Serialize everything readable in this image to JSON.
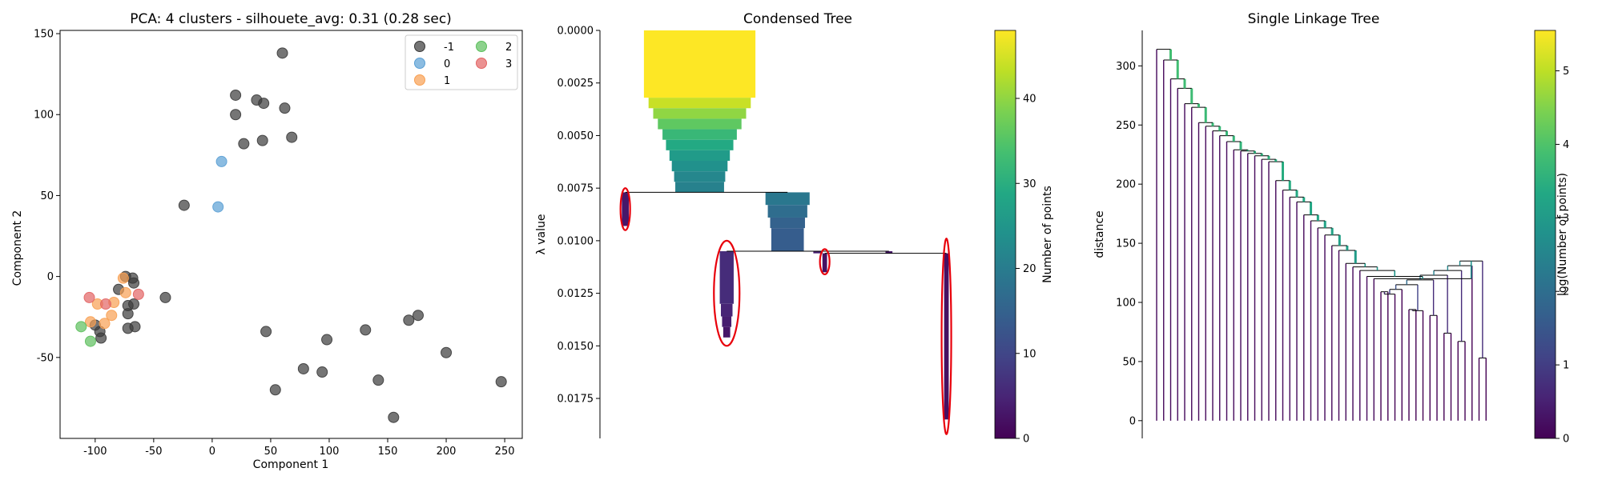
{
  "chart_data": [
    {
      "type": "scatter",
      "title": "PCA: 4 clusters - silhouete_avg: 0.31 (0.28 sec)",
      "xlabel": "Component 1",
      "ylabel": "Component 2",
      "xlim": [
        -130,
        265
      ],
      "ylim": [
        -100,
        152
      ],
      "xticks": [
        -100,
        -50,
        0,
        50,
        100,
        150,
        200,
        250
      ],
      "yticks": [
        -50,
        0,
        50,
        100,
        150
      ],
      "legend_position": "top-right",
      "series": [
        {
          "name": "-1",
          "color": "#3a3a3a",
          "points": [
            [
              60,
              138
            ],
            [
              20,
              112
            ],
            [
              38,
              109
            ],
            [
              44,
              107
            ],
            [
              62,
              104
            ],
            [
              20,
              100
            ],
            [
              68,
              86
            ],
            [
              43,
              84
            ],
            [
              27,
              82
            ],
            [
              -24,
              44
            ],
            [
              -80,
              -8
            ],
            [
              -74,
              0
            ],
            [
              -68,
              -1
            ],
            [
              -67,
              -4
            ],
            [
              -72,
              -18
            ],
            [
              -67,
              -17
            ],
            [
              -40,
              -13
            ],
            [
              -72,
              -23
            ],
            [
              -96,
              -34
            ],
            [
              -100,
              -30
            ],
            [
              -95,
              -38
            ],
            [
              -72,
              -32
            ],
            [
              -66,
              -31
            ],
            [
              46,
              -34
            ],
            [
              98,
              -39
            ],
            [
              131,
              -33
            ],
            [
              168,
              -27
            ],
            [
              176,
              -24
            ],
            [
              200,
              -47
            ],
            [
              78,
              -57
            ],
            [
              94,
              -59
            ],
            [
              142,
              -64
            ],
            [
              247,
              -65
            ],
            [
              54,
              -70
            ],
            [
              155,
              -87
            ]
          ]
        },
        {
          "name": "0",
          "color": "#5a9fd4",
          "points": [
            [
              8,
              71
            ],
            [
              5,
              43
            ]
          ]
        },
        {
          "name": "1",
          "color": "#f8a052",
          "points": [
            [
              -76,
              -1
            ],
            [
              -74,
              -10
            ],
            [
              -84,
              -16
            ],
            [
              -98,
              -17
            ],
            [
              -86,
              -24
            ],
            [
              -104,
              -28
            ],
            [
              -92,
              -29
            ]
          ]
        },
        {
          "name": "2",
          "color": "#5cbf5c",
          "points": [
            [
              -112,
              -31
            ],
            [
              -104,
              -40
            ]
          ]
        },
        {
          "name": "3",
          "color": "#e26464",
          "points": [
            [
              -105,
              -13
            ],
            [
              -63,
              -11
            ],
            [
              -91,
              -17
            ]
          ]
        }
      ]
    },
    {
      "type": "bar",
      "title": "Condensed Tree",
      "ylabel": "λ value",
      "yticks": [
        "0.0000",
        "0.0025",
        "0.0050",
        "0.0075",
        "0.0100",
        "0.0125",
        "0.0150",
        "0.0175"
      ],
      "ylim": [
        0,
        0.0194
      ],
      "colorbar_label": "Number of points",
      "colorbar_ticks": [
        0,
        10,
        20,
        30,
        40
      ],
      "colorbar_max": 48,
      "branches": [
        {
          "x": 0.25,
          "start": 0.0,
          "end": 0.0077,
          "steps": [
            [
              0.0,
              0.0032,
              48
            ],
            [
              0.0032,
              0.0037,
              44
            ],
            [
              0.0037,
              0.0042,
              40
            ],
            [
              0.0042,
              0.0047,
              36
            ],
            [
              0.0047,
              0.0052,
              32
            ],
            [
              0.0052,
              0.0057,
              29
            ],
            [
              0.0057,
              0.0062,
              26
            ],
            [
              0.0062,
              0.0067,
              24
            ],
            [
              0.0067,
              0.0072,
              22
            ],
            [
              0.0072,
              0.0077,
              21
            ]
          ]
        },
        {
          "x": 0.03,
          "start": 0.0077,
          "end": 0.0093,
          "steps": [
            [
              0.0077,
              0.0093,
              3
            ]
          ]
        },
        {
          "x": 0.51,
          "start": 0.0077,
          "end": 0.0105,
          "steps": [
            [
              0.0077,
              0.0083,
              19
            ],
            [
              0.0083,
              0.0089,
              17
            ],
            [
              0.0089,
              0.0094,
              15
            ],
            [
              0.0094,
              0.0105,
              14
            ]
          ]
        },
        {
          "x": 0.33,
          "start": 0.0105,
          "end": 0.0146,
          "steps": [
            [
              0.0105,
              0.013,
              6
            ],
            [
              0.013,
              0.0136,
              5
            ],
            [
              0.0136,
              0.0141,
              4
            ],
            [
              0.0141,
              0.0146,
              3
            ]
          ]
        },
        {
          "x": 0.6,
          "start": 0.0105,
          "end": 0.0106,
          "steps": [
            [
              0.0105,
              0.0106,
              4
            ]
          ]
        },
        {
          "x": 0.81,
          "start": 0.0105,
          "end": 0.0106,
          "steps": [
            [
              0.0105,
              0.0106,
              3
            ]
          ]
        },
        {
          "x": 0.62,
          "start": 0.0106,
          "end": 0.0115,
          "steps": [
            [
              0.0106,
              0.0115,
              2
            ]
          ]
        },
        {
          "x": 0.98,
          "start": 0.0106,
          "end": 0.0185,
          "steps": [
            [
              0.0106,
              0.0185,
              2
            ]
          ]
        }
      ],
      "links": [
        {
          "y": 0.0077,
          "x1": 0.03,
          "x2": 0.51
        },
        {
          "y": 0.0105,
          "x1": 0.33,
          "x2": 0.81
        },
        {
          "y": 0.0106,
          "x1": 0.62,
          "x2": 0.98
        }
      ],
      "selected_clusters": [
        {
          "x": 0.03,
          "ymin": 0.0075,
          "ymax": 0.0095
        },
        {
          "x": 0.33,
          "ymin": 0.01,
          "ymax": 0.015
        },
        {
          "x": 0.62,
          "ymin": 0.0104,
          "ymax": 0.0116
        },
        {
          "x": 0.98,
          "ymin": 0.0099,
          "ymax": 0.0192
        }
      ]
    },
    {
      "type": "dendrogram",
      "title": "Single Linkage Tree",
      "ylabel": "distance",
      "yticks": [
        0,
        50,
        100,
        150,
        200,
        250,
        300
      ],
      "ylim": [
        -15,
        330
      ],
      "colorbar_label": "log(Number of points)",
      "colorbar_ticks": [
        0,
        1,
        2,
        3,
        4,
        5
      ],
      "colorbar_max": 5.55,
      "backbone_heights": [
        314,
        305,
        289,
        281,
        268,
        265,
        252,
        249,
        245,
        241,
        236,
        229,
        228,
        226,
        224,
        221,
        219,
        203,
        195,
        189,
        185,
        174,
        169,
        163,
        157,
        148,
        144,
        133,
        130,
        127,
        122,
        120
      ],
      "subtree": {
        "merges": [
          [
            0,
            1,
            109
          ],
          [
            0,
            2,
            107
          ],
          [
            4,
            5,
            94
          ],
          [
            4,
            6,
            93
          ],
          [
            6,
            7,
            74
          ],
          [
            7,
            8,
            89
          ],
          [
            8,
            9,
            78
          ],
          [
            9,
            10,
            74
          ],
          [
            10,
            11,
            71
          ],
          [
            11,
            12,
            67
          ],
          [
            14,
            15,
            53
          ]
        ]
      }
    }
  ]
}
